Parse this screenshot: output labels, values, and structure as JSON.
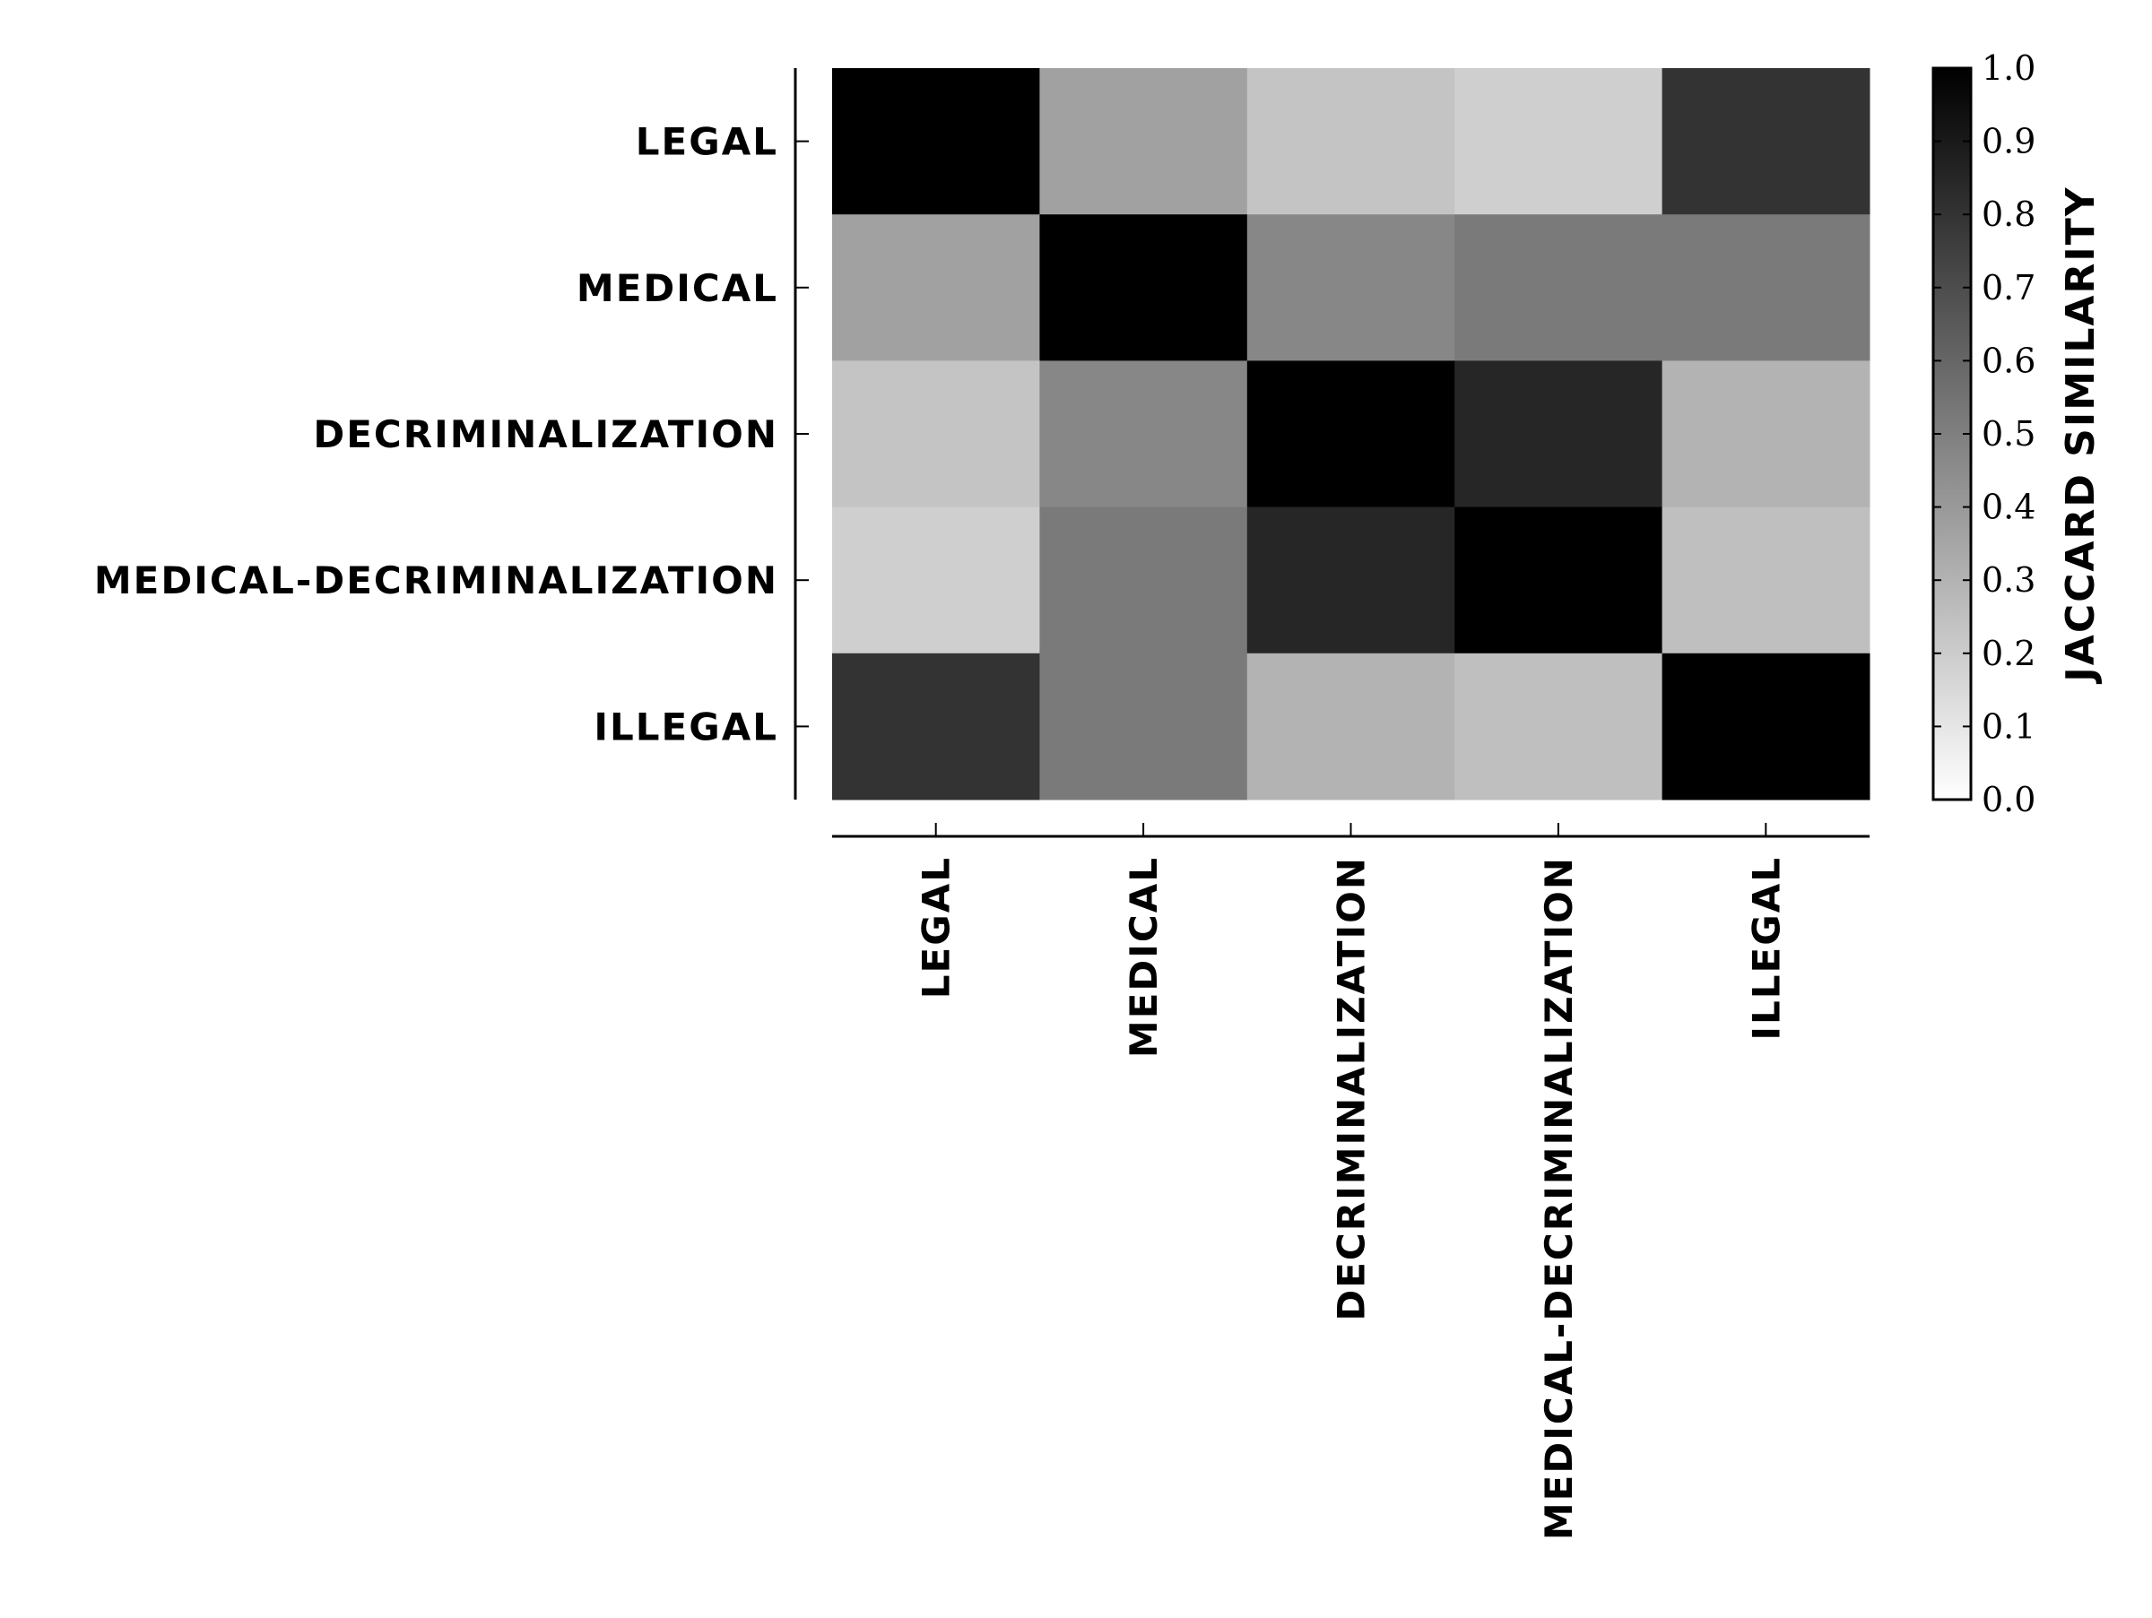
{
  "chart_data": {
    "type": "heatmap",
    "rows": [
      "LEGAL",
      "MEDICAL",
      "DECRIMINALIZATION",
      "MEDICAL-DECRIMINALIZATION",
      "ILLEGAL"
    ],
    "columns": [
      "LEGAL",
      "MEDICAL",
      "DECRIMINALIZATION",
      "MEDICAL-DECRIMINALIZATION",
      "ILLEGAL"
    ],
    "values": [
      [
        1.0,
        0.37,
        0.23,
        0.19,
        0.8
      ],
      [
        0.37,
        1.0,
        0.47,
        0.52,
        0.52
      ],
      [
        0.23,
        0.47,
        1.0,
        0.85,
        0.3
      ],
      [
        0.19,
        0.52,
        0.85,
        1.0,
        0.25
      ],
      [
        0.8,
        0.52,
        0.3,
        0.25,
        1.0
      ]
    ],
    "colormap": "Greys",
    "colorbar": {
      "label": "JACCARD SIMILARITY",
      "range": [
        0.0,
        1.0
      ],
      "ticks": [
        "0.0",
        "0.1",
        "0.2",
        "0.3",
        "0.4",
        "0.5",
        "0.6",
        "0.7",
        "0.8",
        "0.9",
        "1.0"
      ]
    },
    "title": "",
    "grid": false
  }
}
